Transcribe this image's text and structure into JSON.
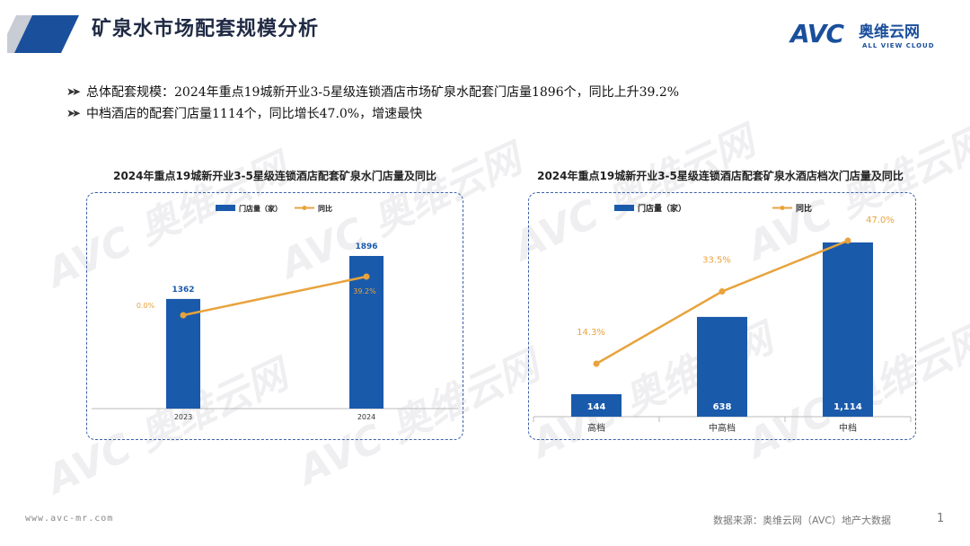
{
  "header": {
    "title": "矿泉水市场配套规模分析"
  },
  "logo": {
    "brand": "AVC",
    "cn_name": "奥维云网",
    "en_name": "ALL VIEW CLOUD"
  },
  "bullets": [
    "总体配套规模：2024年重点19城新开业3-5星级连锁酒店市场矿泉水配套门店量1896个，同比上升39.2%",
    "中档酒店的配套门店量1114个，同比增长47.0%，增速最快"
  ],
  "colors": {
    "bar": "#1a5aab",
    "line": "#e8a33d",
    "title": "#1f2a44"
  },
  "chart_data": [
    {
      "type": "bar",
      "title": "2024年重点19城新开业3-5星级连锁酒店配套矿泉水门店量及同比",
      "categories": [
        "2023",
        "2024"
      ],
      "series": [
        {
          "name": "门店量（家）",
          "values": [
            1362,
            1896
          ],
          "value_labels": [
            "1362",
            "1896"
          ]
        },
        {
          "name": "同比",
          "type": "line",
          "values": [
            0.0,
            39.2
          ],
          "value_labels": [
            "0.0%",
            "39.2%"
          ]
        }
      ],
      "legend": "top"
    },
    {
      "type": "bar",
      "title": "2024年重点19城新开业3-5星级连锁酒店配套矿泉水酒店档次门店量及同比",
      "categories": [
        "高档",
        "中高档",
        "中档"
      ],
      "series": [
        {
          "name": "门店量（家）",
          "values": [
            144,
            638,
            1114
          ],
          "value_labels": [
            "144",
            "638",
            "1,114"
          ]
        },
        {
          "name": "同比",
          "type": "line",
          "values": [
            14.3,
            33.5,
            47.0
          ],
          "value_labels": [
            "14.3%",
            "33.5%",
            "47.0%"
          ]
        }
      ],
      "legend": "top"
    }
  ],
  "footer": {
    "url": "www.avc-mr.com",
    "source": "数据来源：奥维云网（AVC）地产大数据",
    "page": "1"
  }
}
